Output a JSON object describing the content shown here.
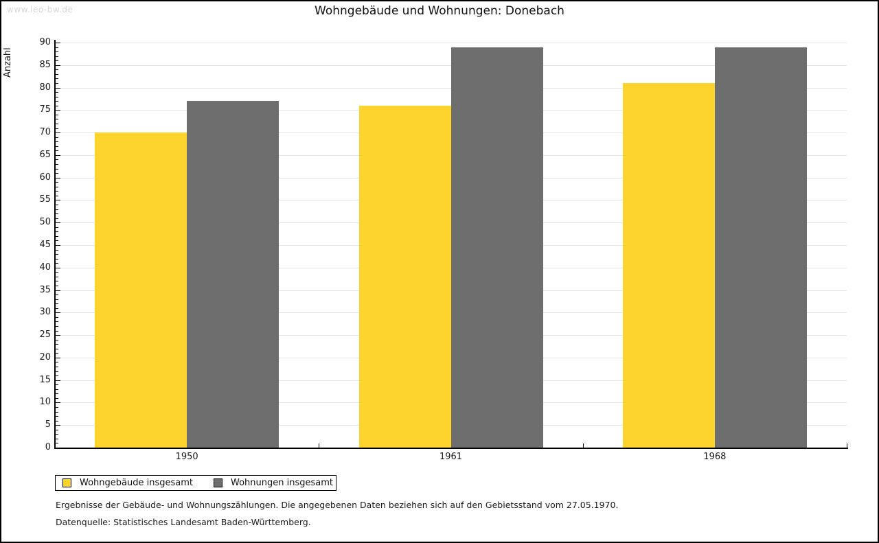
{
  "watermark": "www.leo-bw.de",
  "chart_data": {
    "type": "bar",
    "title": "Wohngebäude und Wohnungen: Donebach",
    "xlabel": "",
    "ylabel": "Anzahl",
    "categories": [
      "1950",
      "1961",
      "1968"
    ],
    "series": [
      {
        "name": "Wohngebäude insgesamt",
        "color": "#fcd42d",
        "values": [
          70,
          76,
          81
        ]
      },
      {
        "name": "Wohnungen insgesamt",
        "color": "#6e6e6e",
        "values": [
          77,
          89,
          89
        ]
      }
    ],
    "ylim": [
      0,
      90
    ],
    "y_major_step": 5,
    "y_minor_step": 1,
    "grid": true,
    "legend_position": "bottom-left"
  },
  "notes": {
    "line1": "Ergebnisse der Gebäude- und Wohnungszählungen. Die angegebenen Daten beziehen sich auf den Gebietsstand vom 27.05.1970.",
    "line2": "Datenquelle: Statistisches Landesamt Baden-Württemberg."
  },
  "colors": {
    "grid": "#e3e3e3",
    "axis": "#000000",
    "text": "#1a1a1a",
    "watermark": "#d8d8d8",
    "background": "#ffffff"
  }
}
